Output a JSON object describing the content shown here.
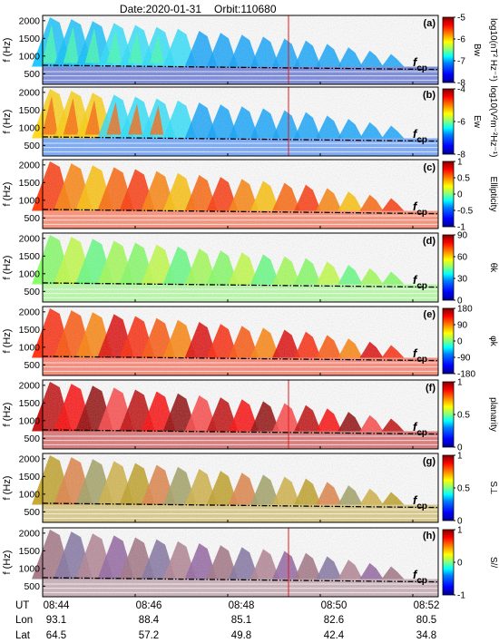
{
  "header": {
    "date_text": "Date:2020-01-31",
    "orbit_text": "Orbit:110680"
  },
  "colors": {
    "jet": [
      "#00008f",
      "#0000ff",
      "#0080ff",
      "#00ffff",
      "#80ff80",
      "#ffff00",
      "#ff8000",
      "#ff0000",
      "#800000"
    ],
    "grid": "#000000",
    "event_line": "#e41a1c"
  },
  "chart_data": [
    {
      "id": "a",
      "type": "heatmap",
      "panel_label": "(a)",
      "ylabel": "f (Hz)",
      "yticks": [
        500,
        1000,
        1500,
        2000
      ],
      "ylim": [
        200,
        2150
      ],
      "colorbar": {
        "title": "Bw",
        "unit": "log10(nT² Hz⁻¹)",
        "ticks": [
          -5,
          -6,
          -7,
          -8
        ],
        "range": [
          -8,
          -5
        ]
      },
      "annotation": "fcp",
      "tint": "saturated"
    },
    {
      "id": "b",
      "type": "heatmap",
      "panel_label": "(b)",
      "ylabel": "f (Hz)",
      "yticks": [
        500,
        1000,
        1500,
        2000
      ],
      "ylim": [
        200,
        2150
      ],
      "colorbar": {
        "title": "Ew",
        "unit": "log10(V²m⁻²Hz⁻¹)",
        "ticks": [
          -4,
          -6,
          -8
        ],
        "range": [
          -8,
          -4
        ]
      },
      "annotation": "fcp",
      "tint": "saturated"
    },
    {
      "id": "c",
      "type": "heatmap",
      "panel_label": "(c)",
      "ylabel": "f (Hz)",
      "yticks": [
        500,
        1000,
        1500,
        2000
      ],
      "ylim": [
        200,
        2150
      ],
      "colorbar": {
        "title": "Ellipticity",
        "ticks": [
          1,
          0.5,
          0,
          -0.5,
          -1
        ],
        "range": [
          -1,
          1
        ]
      },
      "annotation": "fcp",
      "tint": "orange"
    },
    {
      "id": "d",
      "type": "heatmap",
      "panel_label": "(d)",
      "ylabel": "f (Hz)",
      "yticks": [
        500,
        1000,
        1500,
        2000
      ],
      "ylim": [
        200,
        2150
      ],
      "colorbar": {
        "title": "θk",
        "ticks": [
          90,
          60,
          30,
          0
        ],
        "range": [
          0,
          90
        ]
      },
      "annotation": "fcp",
      "tint": "green"
    },
    {
      "id": "e",
      "type": "heatmap",
      "panel_label": "(e)",
      "ylabel": "f (Hz)",
      "yticks": [
        500,
        1000,
        1500,
        2000
      ],
      "ylim": [
        200,
        2150
      ],
      "colorbar": {
        "title": "φk",
        "ticks": [
          180,
          90,
          0,
          -90,
          -180
        ],
        "range": [
          -180,
          180
        ]
      },
      "annotation": "fcp",
      "tint": "red"
    },
    {
      "id": "f",
      "type": "heatmap",
      "panel_label": "(f)",
      "ylabel": "f (Hz)",
      "yticks": [
        500,
        1000,
        1500,
        2000
      ],
      "ylim": [
        200,
        2150
      ],
      "colorbar": {
        "title": "planarity",
        "ticks": [
          1,
          0.5,
          0
        ],
        "range": [
          0,
          1
        ]
      },
      "annotation": "fcp",
      "tint": "darkred"
    },
    {
      "id": "g",
      "type": "heatmap",
      "panel_label": "(g)",
      "ylabel": "f (Hz)",
      "yticks": [
        500,
        1000,
        1500,
        2000
      ],
      "ylim": [
        200,
        2150
      ],
      "colorbar": {
        "title": "S⊥",
        "ticks": [
          1,
          0.5,
          0
        ],
        "range": [
          0,
          1
        ]
      },
      "annotation": "fcp",
      "tint": "olive"
    },
    {
      "id": "h",
      "type": "heatmap",
      "panel_label": "(h)",
      "ylabel": "f (Hz)",
      "yticks": [
        500,
        1000,
        1500,
        2000
      ],
      "ylim": [
        200,
        2150
      ],
      "colorbar": {
        "title": "S//",
        "ticks": [
          1,
          0,
          -1
        ],
        "range": [
          -1,
          1
        ]
      },
      "annotation": "fcp",
      "tint": "purple"
    }
  ],
  "x_axis": {
    "row_labels": [
      "UT",
      "Lon",
      "Lat"
    ],
    "UT": [
      "08:44",
      "08:46",
      "08:48",
      "08:50",
      "08:52"
    ],
    "Lon": [
      "93.1",
      "88.4",
      "85.1",
      "82.6",
      "80.5"
    ],
    "Lat": [
      "64.5",
      "57.2",
      "49.8",
      "42.4",
      "34.8"
    ]
  }
}
